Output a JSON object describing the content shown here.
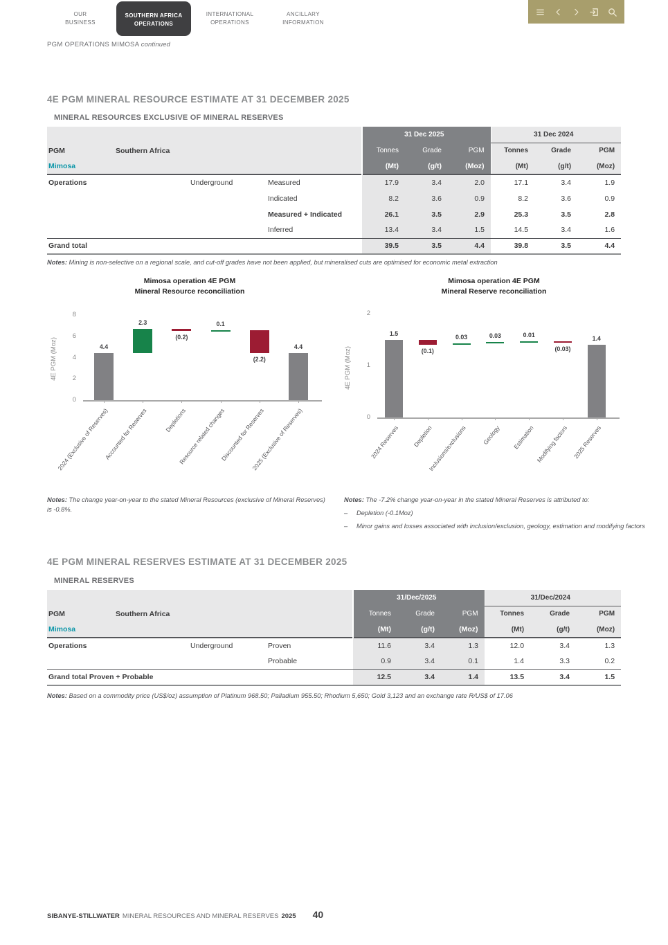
{
  "colors": {
    "khaki": "#a89e6c",
    "tab_dark": "#3f3f41",
    "teal": "#0e97a9",
    "bar_gray": "#818184",
    "bar_green": "#17834a",
    "bar_red": "#9c1c33",
    "header_dark": "#808285",
    "header_light": "#e8e8e9",
    "shade_2025": "#e6e6e7"
  },
  "nav": {
    "tabs": [
      {
        "line1": "OUR",
        "line2": "BUSINESS",
        "active": false
      },
      {
        "line1": "SOUTHERN AFRICA",
        "line2": "OPERATIONS",
        "active": true
      },
      {
        "line1": "INTERNATIONAL",
        "line2": "OPERATIONS",
        "active": false
      },
      {
        "line1": "ANCILLARY",
        "line2": "INFORMATION",
        "active": false
      }
    ],
    "icons": [
      "menu-icon",
      "chevron-left-icon",
      "chevron-right-icon",
      "exit-icon",
      "search-icon"
    ]
  },
  "breadcrumb": {
    "text": "PGM OPERATIONS MIMOSA",
    "suffix": "continued"
  },
  "resources": {
    "heading": "4E PGM MINERAL RESOURCE ESTIMATE AT 31 DECEMBER 2025",
    "table": {
      "title": "MINERAL RESOURCES EXCLUSIVE OF MINERAL RESERVES",
      "group_label": "PGM",
      "region_label": "Southern Africa",
      "entity_label": "Mimosa",
      "period_headers": [
        "31 Dec 2025",
        "31 Dec 2024"
      ],
      "measure_headers": [
        "Tonnes",
        "Grade",
        "PGM"
      ],
      "unit_headers": [
        "(Mt)",
        "(g/t)",
        "(Moz)"
      ],
      "rows": [
        {
          "labels": [
            "Operations",
            "",
            "Underground",
            "Measured"
          ],
          "v2025": [
            "17.9",
            "3.4",
            "2.0"
          ],
          "v2024": [
            "17.1",
            "3.4",
            "1.9"
          ],
          "bold": false
        },
        {
          "labels": [
            "",
            "",
            "",
            "Indicated"
          ],
          "v2025": [
            "8.2",
            "3.6",
            "0.9"
          ],
          "v2024": [
            "8.2",
            "3.6",
            "0.9"
          ],
          "bold": false
        },
        {
          "labels": [
            "",
            "",
            "",
            "Measured + Indicated"
          ],
          "v2025": [
            "26.1",
            "3.5",
            "2.9"
          ],
          "v2024": [
            "25.3",
            "3.5",
            "2.8"
          ],
          "bold": true
        },
        {
          "labels": [
            "",
            "",
            "",
            "Inferred"
          ],
          "v2025": [
            "13.4",
            "3.4",
            "1.5"
          ],
          "v2024": [
            "14.5",
            "3.4",
            "1.6"
          ],
          "bold": false
        }
      ],
      "total_row": {
        "label": "Grand total",
        "v2025": [
          "39.5",
          "3.5",
          "4.4"
        ],
        "v2024": [
          "39.8",
          "3.5",
          "4.4"
        ]
      },
      "notes_label": "Notes:",
      "notes": "Mining is non-selective on a regional scale, and cut-off grades have not been applied, but mineralised cuts are optimised for economic metal extraction"
    }
  },
  "reserves": {
    "heading": "4E PGM MINERAL RESERVES ESTIMATE AT 31 DECEMBER 2025",
    "table": {
      "title": "MINERAL RESERVES",
      "group_label": "PGM",
      "region_label": "Southern Africa",
      "entity_label": "Mimosa",
      "period_headers": [
        "31/Dec/2025",
        "31/Dec/2024"
      ],
      "measure_headers": [
        "Tonnes",
        "Grade",
        "PGM"
      ],
      "unit_headers": [
        "(Mt)",
        "(g/t)",
        "(Moz)"
      ],
      "rows": [
        {
          "labels": [
            "Operations",
            "",
            "Underground",
            "Proven"
          ],
          "v2025": [
            "11.6",
            "3.4",
            "1.3"
          ],
          "v2024": [
            "12.0",
            "3.4",
            "1.3"
          ],
          "bold": false
        },
        {
          "labels": [
            "",
            "",
            "",
            "Probable"
          ],
          "v2025": [
            "0.9",
            "3.4",
            "0.1"
          ],
          "v2024": [
            "1.4",
            "3.3",
            "0.2"
          ],
          "bold": false
        }
      ],
      "total_row": {
        "label": "Grand total Proven + Probable",
        "v2025": [
          "12.5",
          "3.4",
          "1.4"
        ],
        "v2024": [
          "13.5",
          "3.4",
          "1.5"
        ]
      },
      "notes_label": "Notes:",
      "notes": "Based on a commodity price (US$/oz) assumption of Platinum 968.50; Palladium 955.50; Rhodium 5,650; Gold 3,123 and an exchange rate R/US$ of 17.06"
    }
  },
  "chart_data": [
    {
      "type": "bar",
      "subtype": "waterfall",
      "title_lines": [
        "Mimosa operation 4E PGM",
        "Mineral Resource reconciliation"
      ],
      "ylabel": "4E PGM (Moz)",
      "ylim": [
        0,
        8
      ],
      "yticks": [
        0,
        2,
        4,
        6,
        8
      ],
      "grid": false,
      "legend": "none",
      "categories": [
        "2024 (Exclusive of Reserves)",
        "Accounted for Reserves",
        "Depletions",
        "Resource related changes",
        "Discounted for Reserves",
        "2025 (Exclusive of Reserves)"
      ],
      "bars": [
        {
          "category": "2024 (Exclusive of Reserves)",
          "start": 0,
          "end": 4.4,
          "value_label": "4.4",
          "color_key": "gray",
          "label_position": "above"
        },
        {
          "category": "Accounted for Reserves",
          "start": 4.4,
          "end": 6.7,
          "value_label": "2.3",
          "color_key": "green",
          "label_position": "above"
        },
        {
          "category": "Depletions",
          "start": 6.7,
          "end": 6.5,
          "value_label": "(0.2)",
          "color_key": "red",
          "label_position": "below"
        },
        {
          "category": "Resource related changes",
          "start": 6.5,
          "end": 6.6,
          "value_label": "0.1",
          "color_key": "green",
          "label_position": "above"
        },
        {
          "category": "Discounted for Reserves",
          "start": 6.6,
          "end": 4.4,
          "value_label": "(2.2)",
          "color_key": "red",
          "label_position": "below"
        },
        {
          "category": "2025 (Exclusive of Reserves)",
          "start": 0,
          "end": 4.4,
          "value_label": "4.4",
          "color_key": "gray",
          "label_position": "above"
        }
      ],
      "notes_label": "Notes:",
      "notes": "The change year-on-year to the stated Mineral Resources (exclusive of Mineral Reserves) is -0.8%."
    },
    {
      "type": "bar",
      "subtype": "waterfall",
      "title_lines": [
        "Mimosa operation 4E PGM",
        "Mineral Reserve reconciliation"
      ],
      "ylabel": "4E PGM (Moz)",
      "ylim": [
        0,
        2
      ],
      "yticks": [
        0,
        1,
        2
      ],
      "grid": false,
      "legend": "none",
      "categories": [
        "2024 Reserves",
        "Depletion",
        "Inclusions/exclusions",
        "Geology",
        "Estimation",
        "Modifying factors",
        "2025 Reserves"
      ],
      "bars": [
        {
          "category": "2024 Reserves",
          "start": 0,
          "end": 1.5,
          "value_label": "1.5",
          "color_key": "gray",
          "label_position": "above"
        },
        {
          "category": "Depletion",
          "start": 1.5,
          "end": 1.4,
          "value_label": "(0.1)",
          "color_key": "red",
          "label_position": "below"
        },
        {
          "category": "Inclusions/exclusions",
          "start": 1.4,
          "end": 1.43,
          "value_label": "0.03",
          "color_key": "green",
          "label_position": "above"
        },
        {
          "category": "Geology",
          "start": 1.43,
          "end": 1.46,
          "value_label": "0.03",
          "color_key": "green",
          "label_position": "above"
        },
        {
          "category": "Estimation",
          "start": 1.46,
          "end": 1.47,
          "value_label": "0.01",
          "color_key": "green",
          "label_position": "above"
        },
        {
          "category": "Modifying factors",
          "start": 1.47,
          "end": 1.44,
          "value_label": "(0.03)",
          "color_key": "red",
          "label_position": "below"
        },
        {
          "category": "2025 Reserves",
          "start": 0,
          "end": 1.4,
          "value_label": "1.4",
          "color_key": "gray",
          "label_position": "above"
        }
      ],
      "notes_label": "Notes:",
      "notes_intro": "The -7.2% change year-on-year in the stated Mineral Reserves is attributed to:",
      "notes_bullets": [
        {
          "marker": "–",
          "text": "Depletion (-0.1Moz)"
        },
        {
          "marker": "–",
          "text": "Minor gains and losses associated with inclusion/exclusion, geology, estimation and modifying factors"
        }
      ]
    }
  ],
  "footer": {
    "brand": "SIBANYE-STILLWATER",
    "title": "MINERAL RESOURCES AND MINERAL RESERVES",
    "year": "2025",
    "page_number": "40"
  }
}
